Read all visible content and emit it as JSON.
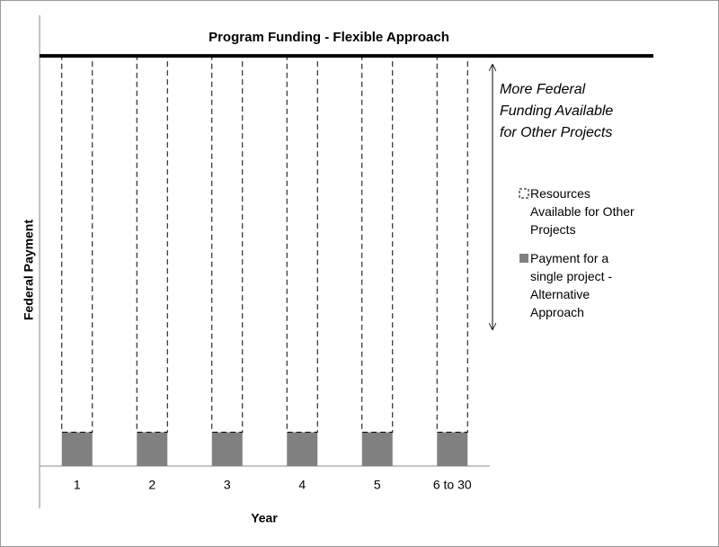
{
  "chart_data": {
    "type": "stacked_bar",
    "reference_line": {
      "label": "Program Funding - Flexible Approach",
      "value": 91
    },
    "xlabel": "Year",
    "ylabel": "Federal Payment",
    "categories": [
      "1",
      "2",
      "3",
      "4",
      "5",
      "6 to 30"
    ],
    "series": [
      {
        "name": "Payment for a single project - Alternative Approach",
        "color": "#808080",
        "values": [
          7.5,
          7.5,
          7.5,
          7.5,
          7.5,
          7.5
        ]
      },
      {
        "name": "Resources Available for Other Projects",
        "color": "none",
        "values": [
          83.5,
          83.5,
          83.5,
          83.5,
          83.5,
          83.5
        ]
      }
    ],
    "annotation": "More Federal Funding Available for Other Projects",
    "ylim": [
      0,
      100
    ]
  }
}
